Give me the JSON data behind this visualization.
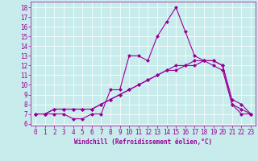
{
  "xlabel": "Windchill (Refroidissement éolien,°C)",
  "bg_color": "#c8ecec",
  "line_color": "#990099",
  "x_ticks": [
    0,
    1,
    2,
    3,
    4,
    5,
    6,
    7,
    8,
    9,
    10,
    11,
    12,
    13,
    14,
    15,
    16,
    17,
    18,
    19,
    20,
    21,
    22,
    23
  ],
  "y_ticks": [
    6,
    7,
    8,
    9,
    10,
    11,
    12,
    13,
    14,
    15,
    16,
    17,
    18
  ],
  "ylim": [
    5.8,
    18.6
  ],
  "xlim": [
    -0.5,
    23.5
  ],
  "line1_x": [
    0,
    1,
    2,
    3,
    4,
    5,
    6,
    7,
    8,
    9,
    10,
    11,
    12,
    13,
    14,
    15,
    16,
    17,
    18,
    19,
    20,
    21,
    22,
    23
  ],
  "line1_y": [
    7,
    7,
    7,
    7,
    6.5,
    6.5,
    7,
    7,
    9.5,
    9.5,
    13,
    13,
    12.5,
    15,
    16.5,
    18,
    15.5,
    13,
    12.5,
    12,
    11.5,
    8,
    7,
    7
  ],
  "line2_x": [
    0,
    1,
    2,
    3,
    4,
    5,
    6,
    7,
    8,
    9,
    10,
    11,
    12,
    13,
    14,
    15,
    16,
    17,
    18,
    19,
    20,
    21,
    22,
    23
  ],
  "line2_y": [
    7,
    7,
    7.5,
    7.5,
    7.5,
    7.5,
    7.5,
    8,
    8.5,
    9,
    9.5,
    10,
    10.5,
    11,
    11.5,
    11.5,
    12,
    12.5,
    12.5,
    12.5,
    12,
    8,
    7.5,
    7
  ],
  "line3_x": [
    0,
    1,
    2,
    3,
    4,
    5,
    6,
    7,
    8,
    9,
    10,
    11,
    12,
    13,
    14,
    15,
    16,
    17,
    18,
    19,
    20,
    21,
    22,
    23
  ],
  "line3_y": [
    7,
    7,
    7.5,
    7.5,
    7.5,
    7.5,
    7.5,
    8,
    8.5,
    9,
    9.5,
    10,
    10.5,
    11,
    11.5,
    12,
    12,
    12,
    12.5,
    12.5,
    12,
    8.5,
    8,
    7
  ],
  "marker": "D",
  "markersize": 2.0,
  "linewidth": 0.8,
  "tick_fontsize": 5.5,
  "xlabel_fontsize": 5.5,
  "grid_color": "#ffffff",
  "grid_linewidth": 0.5
}
